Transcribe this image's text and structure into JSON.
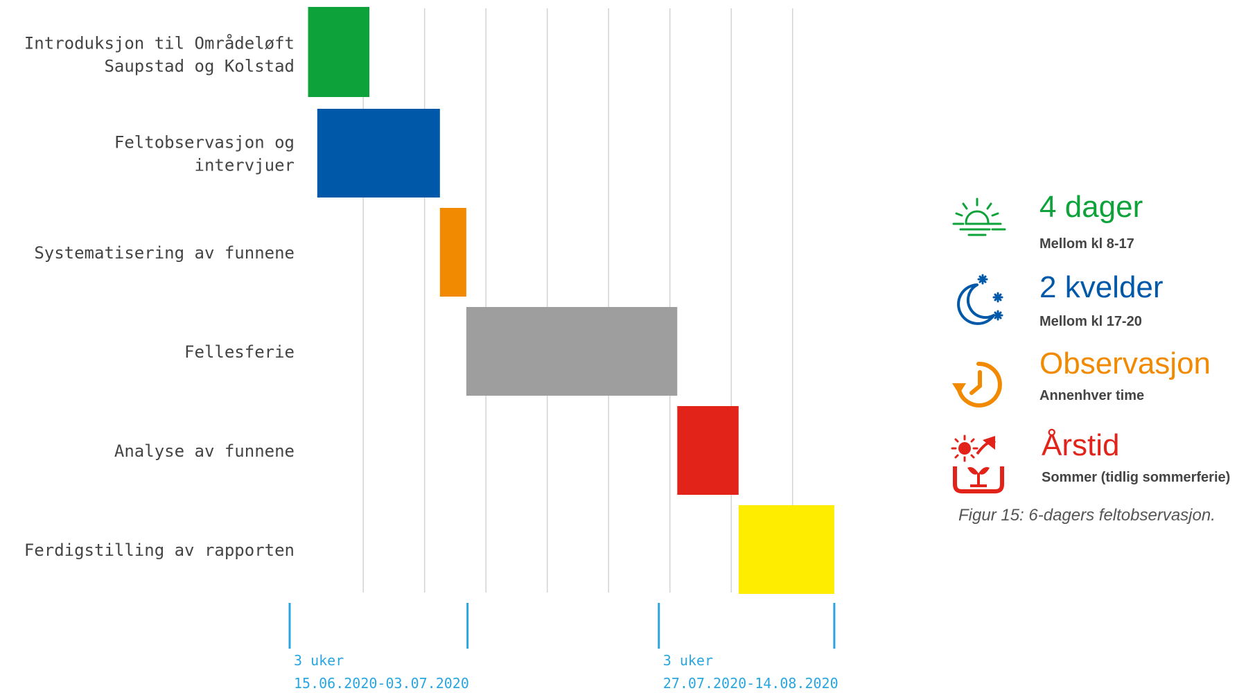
{
  "chart_data": {
    "type": "gantt",
    "tasks": [
      {
        "name": "Introduksjon til Områdeløft Saupstad og Kolstad",
        "lines": [
          "Introduksjon til Områdeløft",
          "Saupstad og Kolstad"
        ],
        "start": 0.3,
        "end": 1.3,
        "color": "#0ea23a"
      },
      {
        "name": "Feltobservasjon og intervjuer",
        "lines": [
          "Feltobservasjon og",
          "intervjuer"
        ],
        "start": 0.45,
        "end": 2.45,
        "color": "#0059a8"
      },
      {
        "name": "Systematisering av funnene",
        "lines": [
          "Systematisering av funnene"
        ],
        "start": 2.45,
        "end": 2.88,
        "color": "#f18a00"
      },
      {
        "name": "Fellesferie",
        "lines": [
          "Fellesferie"
        ],
        "start": 2.88,
        "end": 6.32,
        "color": "#9e9e9e"
      },
      {
        "name": "Analyse av funnene",
        "lines": [
          "Analyse av funnene"
        ],
        "start": 6.32,
        "end": 7.32,
        "color": "#e2231a"
      },
      {
        "name": "Ferdigstilling av rapporten",
        "lines": [
          "Ferdigstilling av rapporten"
        ],
        "start": 7.32,
        "end": 8.88,
        "color": "#ffed00"
      }
    ],
    "grid_lines": [
      1.2,
      2.2,
      3.2,
      4.2,
      5.2,
      6.2,
      7.2,
      8.2
    ],
    "x_range": [
      0,
      8.88
    ],
    "phases": [
      {
        "start": 0,
        "end": 2.9,
        "duration": "3 uker",
        "dates": "15.06.2020-03.07.2020"
      },
      {
        "start": 6.02,
        "end": 8.88,
        "duration": "3 uker",
        "dates": "27.07.2020-14.08.2020"
      }
    ],
    "phase_color": "#29a6e0"
  },
  "legend": [
    {
      "icon": "sun-horizon-icon",
      "title": "4 dager",
      "subtitle": "Mellom kl 8-17",
      "color": "#0ea23a"
    },
    {
      "icon": "moon-stars-icon",
      "title": "2 kvelder",
      "subtitle": "Mellom kl 17-20",
      "color": "#0059a8"
    },
    {
      "icon": "clock-rotate-icon",
      "title": "Observasjon",
      "subtitle": "Annenhver time",
      "color": "#f18a00"
    },
    {
      "icon": "season-plant-icon",
      "title": "Årstid",
      "subtitle": "Sommer (tidlig sommerferie)",
      "color": "#e2231a"
    }
  ],
  "caption": "Figur 15: 6-dagers feltobservasjon."
}
